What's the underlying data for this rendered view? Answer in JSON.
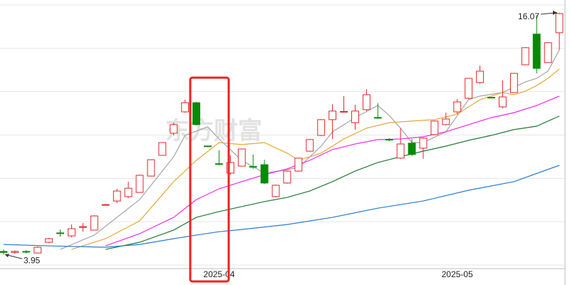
{
  "chart_data": {
    "type": "candlestick",
    "watermark": "东方财富",
    "categories": [
      null,
      null,
      null,
      null,
      null,
      null,
      null,
      null,
      null,
      null,
      null,
      null,
      null,
      null,
      null,
      null,
      null,
      null,
      null,
      "2025-04",
      null,
      null,
      null,
      null,
      null,
      null,
      null,
      null,
      null,
      null,
      null,
      null,
      null,
      null,
      null,
      null,
      null,
      null,
      null,
      null,
      "2025-05",
      null,
      null,
      null,
      null,
      null,
      null,
      null,
      null,
      null
    ],
    "open": [
      4.1,
      4.05,
      4.1,
      4.02,
      4.56,
      5.03,
      4.88,
      5.33,
      5.17,
      6.44,
      6.63,
      6.85,
      7.06,
      7.88,
      8.92,
      10.03,
      11.1,
      11.56,
      9.39,
      8.5,
      8.03,
      8.38,
      8.36,
      8.45,
      6.85,
      7.53,
      8.13,
      9.13,
      9.92,
      10.71,
      11.1,
      10.56,
      11.21,
      10.82,
      9.72,
      8.78,
      9.53,
      9.28,
      9.96,
      10.46,
      11.1,
      11.78,
      12.57,
      11.83,
      11.35,
      12.07,
      13.46,
      15.0,
      13.57,
      15.07
    ],
    "high": [
      4.2,
      4.15,
      4.16,
      4.35,
      4.78,
      5.2,
      5.45,
      5.52,
      5.92,
      6.48,
      7.24,
      7.6,
      7.95,
      8.72,
      9.58,
      10.56,
      11.71,
      11.6,
      9.4,
      9.17,
      8.92,
      9.26,
      8.96,
      8.7,
      7.45,
      8.16,
      8.8,
      9.74,
      10.74,
      11.49,
      11.89,
      11.46,
      12.24,
      11.53,
      9.78,
      10.28,
      9.74,
      9.81,
      10.67,
      11.06,
      11.74,
      12.8,
      13.42,
      11.85,
      12.67,
      13.05,
      14.35,
      15.95,
      14.6,
      16.07
    ],
    "low": [
      3.95,
      3.98,
      4.0,
      4.0,
      4.52,
      4.84,
      4.81,
      5.09,
      5.17,
      6.42,
      6.52,
      6.77,
      7.06,
      7.88,
      8.92,
      9.92,
      11.06,
      10.42,
      9.36,
      8.42,
      7.95,
      8.38,
      8.24,
      7.49,
      6.8,
      7.5,
      8.1,
      9.1,
      9.88,
      9.74,
      11.06,
      10.21,
      11.14,
      10.74,
      9.63,
      8.74,
      8.88,
      8.74,
      9.93,
      10.42,
      10.99,
      11.75,
      12.49,
      11.8,
      11.28,
      12.05,
      13.44,
      13.03,
      13.55,
      14.21
    ],
    "close": [
      4.05,
      4.1,
      4.08,
      4.31,
      4.74,
      5.02,
      5.24,
      5.34,
      5.88,
      6.45,
      7.13,
      7.27,
      7.92,
      8.7,
      9.56,
      10.46,
      11.56,
      10.46,
      9.38,
      8.49,
      8.56,
      9.24,
      8.35,
      7.53,
      7.42,
      8.13,
      8.78,
      9.71,
      10.71,
      11.14,
      11.12,
      11.14,
      11.96,
      10.81,
      9.71,
      9.49,
      8.96,
      9.78,
      10.64,
      10.74,
      11.6,
      12.78,
      13.14,
      11.82,
      11.85,
      13.03,
      14.32,
      13.28,
      14.57,
      16.03
    ],
    "up_color": "#e3262b",
    "down_color": "#078a07",
    "max_label": 16.07,
    "min_label": 3.95,
    "ylim": [
      3.31,
      16.71
    ],
    "grid": true,
    "lines": [
      {
        "color": "#a5a5a5",
        "x": [
          5,
          8,
          12,
          15,
          16,
          18,
          19,
          21,
          23,
          25,
          26,
          28,
          29,
          31,
          33,
          34,
          35,
          36,
          37,
          39,
          41,
          42,
          44,
          46,
          47,
          48,
          49
        ],
        "values": [
          4.2,
          4.92,
          6.7,
          8.85,
          9.92,
          10.35,
          9.74,
          8.67,
          8.03,
          8.2,
          8.31,
          9.38,
          10.1,
          10.81,
          11.42,
          10.92,
          10.28,
          9.56,
          9.56,
          10.1,
          11.71,
          11.89,
          12.07,
          12.6,
          12.78,
          13.14,
          14.21
        ]
      },
      {
        "color": "#e8a838",
        "x": [
          6,
          9,
          12,
          15,
          17,
          19,
          21,
          23,
          25,
          26,
          28,
          30,
          32,
          34,
          36,
          38,
          40,
          42,
          44,
          45,
          46,
          47,
          48,
          49
        ],
        "values": [
          4.2,
          4.74,
          5.63,
          7.6,
          8.67,
          9.56,
          9.46,
          9.56,
          9.03,
          8.67,
          9.03,
          9.74,
          10.28,
          10.56,
          10.64,
          10.71,
          10.99,
          11.71,
          12.07,
          11.96,
          12.14,
          12.42,
          12.78,
          13.25
        ]
      },
      {
        "color": "#f028e8",
        "x": [
          9,
          12,
          15,
          17,
          19,
          21,
          23,
          25,
          27,
          29,
          31,
          33,
          35,
          37,
          39,
          41,
          43,
          45,
          47,
          49
        ],
        "values": [
          4.38,
          4.99,
          5.81,
          6.7,
          7.24,
          7.6,
          7.95,
          8.24,
          8.67,
          9.21,
          9.49,
          9.71,
          9.74,
          9.85,
          10.1,
          10.46,
          10.81,
          11.06,
          11.42,
          11.89
        ]
      },
      {
        "color": "#1f7a35",
        "x": [
          9,
          12,
          15,
          17,
          19,
          21,
          23,
          25,
          27,
          29,
          31,
          33,
          35,
          37,
          39,
          41,
          43,
          45,
          47,
          49
        ],
        "values": [
          4.2,
          4.56,
          5.17,
          5.81,
          6.1,
          6.35,
          6.6,
          6.81,
          7.13,
          7.6,
          8.13,
          8.56,
          8.85,
          9.13,
          9.38,
          9.67,
          9.92,
          10.21,
          10.38,
          10.89
        ]
      },
      {
        "color": "#2a7ccf",
        "x": [
          0,
          4,
          9,
          12,
          15,
          17,
          19,
          21,
          25,
          29,
          33,
          37,
          41,
          45,
          49
        ],
        "values": [
          4.45,
          4.38,
          4.31,
          4.45,
          4.74,
          4.92,
          5.09,
          5.2,
          5.45,
          5.81,
          6.27,
          6.63,
          7.17,
          7.6,
          8.42
        ]
      }
    ]
  }
}
